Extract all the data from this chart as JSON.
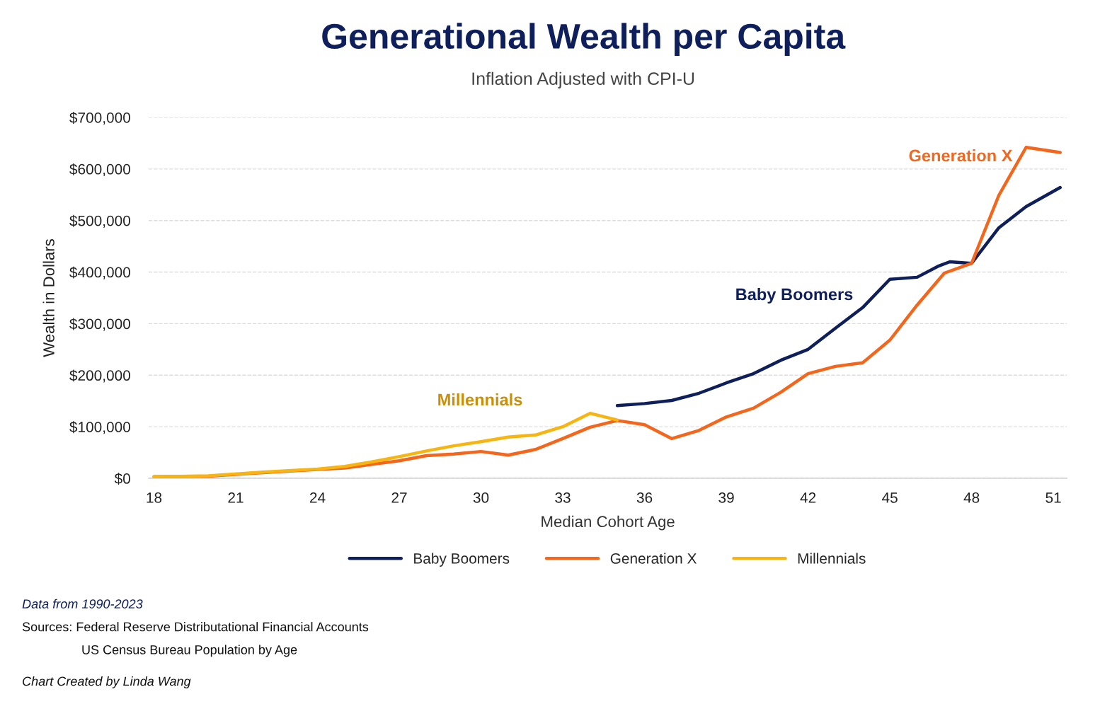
{
  "chart_data": {
    "type": "line",
    "title": "Generational Wealth per Capita",
    "subtitle": "Inflation Adjusted with CPI-U",
    "xlabel": "Median Cohort Age",
    "ylabel": "Wealth in Dollars",
    "series": [
      {
        "name": "Baby Boomers",
        "color": "#0f1f5c",
        "x": [
          35,
          36,
          37,
          38,
          39,
          40,
          41,
          42,
          43,
          44,
          45,
          46,
          46.8,
          47.2,
          48,
          49,
          50,
          51.25
        ],
        "values": [
          141000,
          145000,
          151000,
          165000,
          185000,
          203000,
          229000,
          250000,
          291000,
          331000,
          386000,
          390000,
          412000,
          420000,
          417000,
          486000,
          527000,
          564000
        ]
      },
      {
        "name": "Generation X",
        "color": "#f4661b",
        "x": [
          18,
          20,
          22,
          24,
          25,
          26,
          27,
          28,
          29,
          30,
          31,
          32,
          33,
          34,
          35,
          36,
          37,
          38,
          39,
          40,
          41,
          42,
          43,
          44,
          45,
          46,
          47,
          48,
          49,
          50,
          51.25
        ],
        "values": [
          3000,
          4000,
          11000,
          17000,
          20000,
          27000,
          34000,
          44000,
          47000,
          52000,
          45000,
          56000,
          77000,
          99000,
          112000,
          104000,
          77000,
          93000,
          119000,
          136000,
          167000,
          203000,
          217000,
          224000,
          268000,
          336000,
          398000,
          417000,
          549000,
          642000,
          632000
        ]
      },
      {
        "name": "Millennials",
        "color": "#f7b512",
        "x": [
          18,
          20,
          22,
          24,
          25,
          26,
          27,
          28,
          29,
          30,
          31,
          32,
          33,
          34,
          35
        ],
        "values": [
          3000,
          5000,
          12000,
          18000,
          23000,
          32000,
          42000,
          53000,
          63000,
          71000,
          80000,
          84000,
          100000,
          126000,
          113000
        ]
      }
    ],
    "xlim": [
      17.8,
      51.5
    ],
    "xticks": [
      18,
      21,
      24,
      27,
      30,
      33,
      36,
      39,
      42,
      45,
      48,
      51
    ],
    "ylim": [
      0,
      700000
    ],
    "yticks": [
      {
        "value": 0,
        "label": "$0"
      },
      {
        "value": 100000,
        "label": "$100,000"
      },
      {
        "value": 200000,
        "label": "$200,000"
      },
      {
        "value": 300000,
        "label": "$300,000"
      },
      {
        "value": 400000,
        "label": "$400,000"
      },
      {
        "value": 500000,
        "label": "$500,000"
      },
      {
        "value": 600000,
        "label": "$600,000"
      },
      {
        "value": 700000,
        "label": "$700,000"
      }
    ],
    "grid": "y",
    "legend": "bottom",
    "marker": "none",
    "line_style": "solid",
    "annotations": [
      "Baby Boomers",
      "Generation X",
      "Millennials",
      "Data from 1990-2023",
      "Sources: Federal Reserve Distributational Financial Accounts",
      "US Census Bureau Population by Age",
      "Chart Created by Linda Wang"
    ]
  }
}
